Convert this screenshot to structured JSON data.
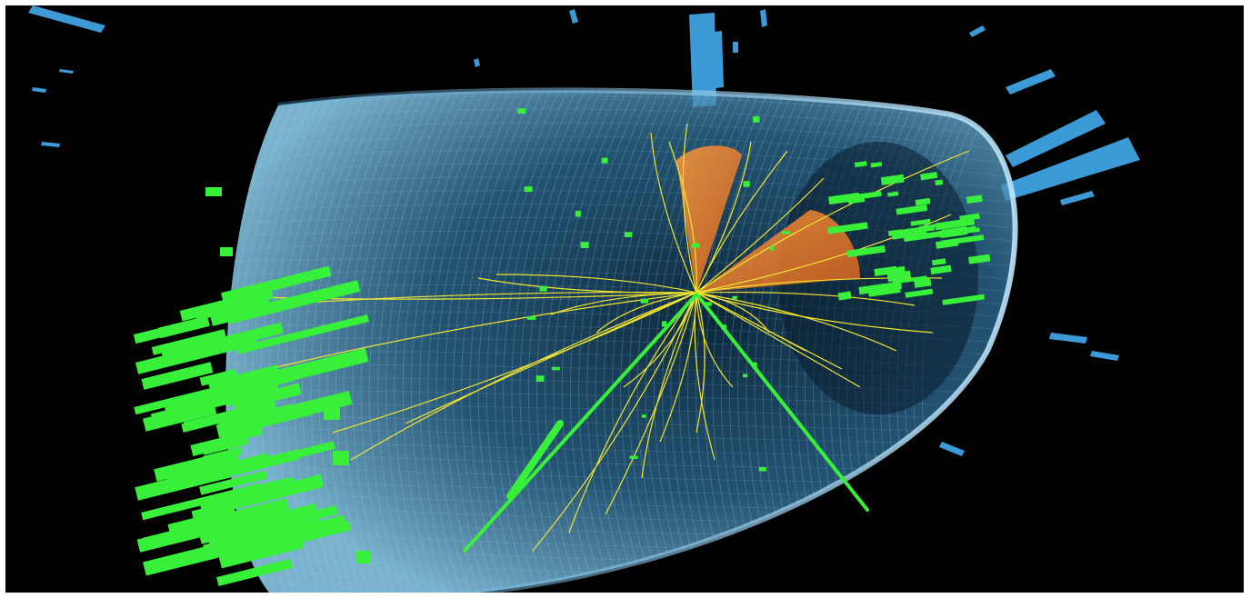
{
  "image": {
    "background": "#000000",
    "border": "#ffffff"
  },
  "colors": {
    "detector_mesh": "#7ec6ec",
    "detector_fill": "#3b8fc2",
    "tracks": "#f2e531",
    "energy_deposits": "#38f03a",
    "jet_cones": "#f07a1e",
    "outer_towers": "#3c9ad6"
  },
  "elements": {
    "detector": "detector-cylinder-icon",
    "tracks": "particle-track-icon",
    "jets": "jet-cone-icon",
    "green_deposits": "calorimeter-deposit-icon",
    "blue_towers": "calorimeter-tower-icon"
  }
}
